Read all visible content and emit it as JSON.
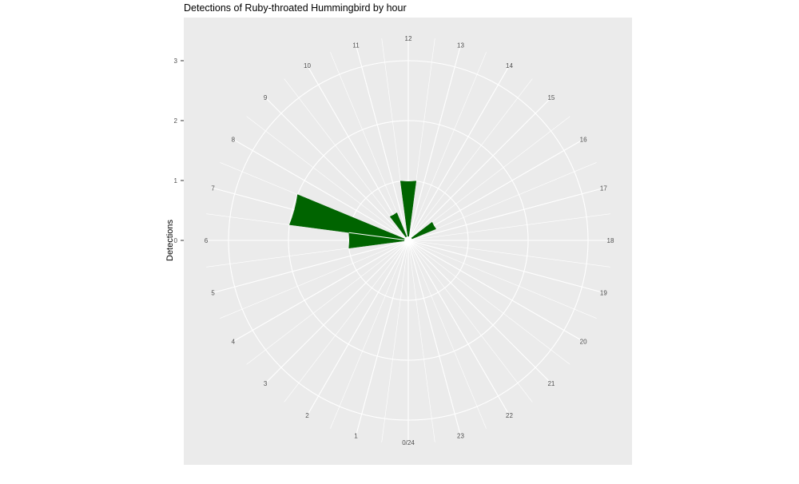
{
  "chart_data": {
    "type": "bar",
    "coordinate_system": "polar",
    "title": "Detections of Ruby-throated Hummingbird by hour",
    "ylabel": "Detections",
    "xlabel": "",
    "ylim": [
      0,
      3
    ],
    "y_ticks": [
      "0",
      "1",
      "2",
      "3"
    ],
    "hour_labels": [
      "0/24",
      "1",
      "2",
      "3",
      "4",
      "5",
      "6",
      "7",
      "8",
      "9",
      "10",
      "11",
      "12",
      "13",
      "14",
      "15",
      "16",
      "17",
      "18",
      "19",
      "20",
      "21",
      "22",
      "23"
    ],
    "categories": [
      0,
      1,
      2,
      3,
      4,
      5,
      6,
      7,
      8,
      9,
      10,
      11,
      12,
      13,
      14,
      15,
      16,
      17,
      18,
      19,
      20,
      21,
      22,
      23
    ],
    "values": [
      0,
      0,
      0,
      0,
      0,
      0,
      1,
      2,
      0,
      0,
      0.5,
      0,
      1,
      0,
      0,
      0,
      0.5,
      0,
      0,
      0,
      0,
      0,
      0,
      0
    ],
    "bar_color": "#006400",
    "panel_background": "#ebebeb",
    "grid_color": "#ffffff",
    "grid": true,
    "legend": "none"
  }
}
